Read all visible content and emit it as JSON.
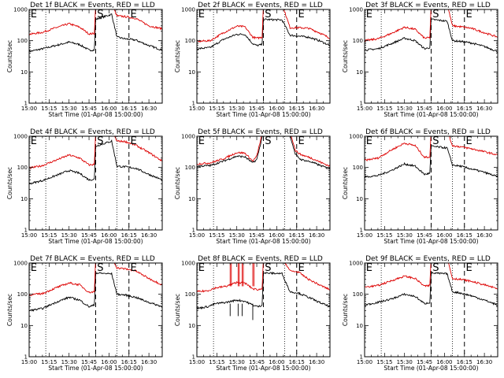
{
  "chart_data": {
    "type": "line",
    "layout": {
      "rows": 3,
      "cols": 3
    },
    "shared": {
      "xlabel": "Start Time (01-Apr-08 15:00:00)",
      "ylabel": "Counts/sec",
      "x_tick_labels": [
        "15:00",
        "15:15",
        "15:30",
        "15:45",
        "16:00",
        "16:15",
        "16:30"
      ],
      "x_tick_minutes": [
        0,
        15,
        30,
        45,
        60,
        75,
        90
      ],
      "xlim_minutes": [
        0,
        100
      ],
      "y_scale": "log",
      "ylim": [
        1,
        1000
      ],
      "y_tick_labels": [
        "1",
        "10",
        "100",
        "1000"
      ],
      "y_tick_values": [
        1,
        10,
        100,
        1000
      ],
      "series_colors": {
        "Events": "#000000",
        "LLD": "#dd0000"
      },
      "dotted_lines_minutes": [
        12.5,
        66
      ],
      "events_line_minutes": [
        50,
        75
      ],
      "event_markers": [
        {
          "text": "E",
          "minute": 1
        },
        {
          "text": "S",
          "minute": 51
        },
        {
          "text": "E",
          "minute": 76
        }
      ]
    },
    "panels": [
      {
        "title": "Det 1f BLACK = Events, RED = LLD",
        "events": [
          [
            0,
            45
          ],
          [
            10,
            55
          ],
          [
            20,
            70
          ],
          [
            30,
            90
          ],
          [
            38,
            75
          ],
          [
            45,
            50
          ],
          [
            49,
            50
          ],
          [
            50,
            480
          ],
          [
            62,
            700
          ],
          [
            66,
            130
          ],
          [
            72,
            115
          ],
          [
            80,
            105
          ],
          [
            90,
            70
          ],
          [
            100,
            50
          ]
        ],
        "lld": [
          [
            0,
            160
          ],
          [
            10,
            185
          ],
          [
            20,
            260
          ],
          [
            30,
            350
          ],
          [
            38,
            270
          ],
          [
            45,
            165
          ],
          [
            49,
            170
          ],
          [
            50,
            1500
          ],
          [
            62,
            1500
          ],
          [
            66,
            620
          ],
          [
            72,
            590
          ],
          [
            80,
            520
          ],
          [
            90,
            300
          ],
          [
            100,
            240
          ]
        ]
      },
      {
        "title": "Det 2f BLACK = Events, RED = LLD",
        "events": [
          [
            0,
            55
          ],
          [
            10,
            60
          ],
          [
            20,
            110
          ],
          [
            30,
            160
          ],
          [
            36,
            160
          ],
          [
            42,
            80
          ],
          [
            45,
            70
          ],
          [
            49,
            75
          ],
          [
            50,
            480
          ],
          [
            64,
            460
          ],
          [
            70,
            150
          ],
          [
            76,
            140
          ],
          [
            84,
            130
          ],
          [
            92,
            100
          ],
          [
            100,
            70
          ]
        ],
        "lld": [
          [
            0,
            95
          ],
          [
            10,
            100
          ],
          [
            20,
            180
          ],
          [
            30,
            290
          ],
          [
            36,
            280
          ],
          [
            42,
            130
          ],
          [
            45,
            120
          ],
          [
            49,
            130
          ],
          [
            50,
            1500
          ],
          [
            64,
            1500
          ],
          [
            70,
            260
          ],
          [
            76,
            260
          ],
          [
            84,
            250
          ],
          [
            92,
            180
          ],
          [
            100,
            120
          ]
        ]
      },
      {
        "title": "Det 3f BLACK = Events, RED = LLD",
        "events": [
          [
            0,
            50
          ],
          [
            10,
            55
          ],
          [
            20,
            80
          ],
          [
            30,
            120
          ],
          [
            38,
            100
          ],
          [
            45,
            55
          ],
          [
            49,
            60
          ],
          [
            50,
            480
          ],
          [
            62,
            420
          ],
          [
            66,
            100
          ],
          [
            72,
            95
          ],
          [
            80,
            85
          ],
          [
            90,
            65
          ],
          [
            100,
            45
          ]
        ],
        "lld": [
          [
            0,
            100
          ],
          [
            10,
            115
          ],
          [
            20,
            170
          ],
          [
            30,
            270
          ],
          [
            38,
            230
          ],
          [
            45,
            120
          ],
          [
            49,
            125
          ],
          [
            50,
            1500
          ],
          [
            62,
            1500
          ],
          [
            66,
            300
          ],
          [
            72,
            280
          ],
          [
            80,
            250
          ],
          [
            90,
            180
          ],
          [
            100,
            130
          ]
        ]
      },
      {
        "title": "Det 4f BLACK = Events, RED = LLD",
        "events": [
          [
            0,
            30
          ],
          [
            10,
            38
          ],
          [
            20,
            55
          ],
          [
            30,
            80
          ],
          [
            38,
            65
          ],
          [
            45,
            40
          ],
          [
            49,
            42
          ],
          [
            50,
            480
          ],
          [
            62,
            700
          ],
          [
            66,
            110
          ],
          [
            72,
            105
          ],
          [
            80,
            95
          ],
          [
            90,
            60
          ],
          [
            100,
            40
          ]
        ],
        "lld": [
          [
            0,
            95
          ],
          [
            10,
            115
          ],
          [
            20,
            170
          ],
          [
            30,
            250
          ],
          [
            38,
            200
          ],
          [
            45,
            120
          ],
          [
            49,
            125
          ],
          [
            50,
            1500
          ],
          [
            62,
            1500
          ],
          [
            66,
            700
          ],
          [
            72,
            680
          ],
          [
            80,
            520
          ],
          [
            90,
            300
          ],
          [
            100,
            160
          ]
        ]
      },
      {
        "title": "Det 5f BLACK = Events, RED = LLD",
        "events": [
          [
            0,
            110
          ],
          [
            10,
            115
          ],
          [
            20,
            160
          ],
          [
            30,
            230
          ],
          [
            36,
            220
          ],
          [
            42,
            140
          ],
          [
            45,
            180
          ],
          [
            49,
            900
          ],
          [
            52,
            3500
          ],
          [
            62,
            6000
          ],
          [
            68,
            2200
          ],
          [
            74,
            260
          ],
          [
            78,
            180
          ],
          [
            86,
            150
          ],
          [
            94,
            110
          ],
          [
            100,
            90
          ]
        ],
        "lld": [
          [
            0,
            130
          ],
          [
            10,
            140
          ],
          [
            20,
            190
          ],
          [
            30,
            300
          ],
          [
            36,
            290
          ],
          [
            42,
            160
          ],
          [
            45,
            230
          ],
          [
            49,
            1200
          ],
          [
            52,
            4500
          ],
          [
            62,
            8000
          ],
          [
            68,
            3000
          ],
          [
            74,
            350
          ],
          [
            78,
            260
          ],
          [
            86,
            200
          ],
          [
            94,
            140
          ],
          [
            100,
            110
          ]
        ]
      },
      {
        "title": "Det 6f BLACK = Events, RED = LLD",
        "events": [
          [
            0,
            50
          ],
          [
            10,
            55
          ],
          [
            20,
            80
          ],
          [
            30,
            130
          ],
          [
            38,
            110
          ],
          [
            45,
            60
          ],
          [
            49,
            65
          ],
          [
            50,
            480
          ],
          [
            62,
            420
          ],
          [
            66,
            120
          ],
          [
            72,
            110
          ],
          [
            80,
            90
          ],
          [
            90,
            70
          ],
          [
            100,
            50
          ]
        ],
        "lld": [
          [
            0,
            170
          ],
          [
            10,
            200
          ],
          [
            20,
            360
          ],
          [
            30,
            600
          ],
          [
            38,
            500
          ],
          [
            45,
            210
          ],
          [
            49,
            220
          ],
          [
            50,
            1500
          ],
          [
            62,
            1500
          ],
          [
            66,
            500
          ],
          [
            72,
            460
          ],
          [
            80,
            400
          ],
          [
            90,
            320
          ],
          [
            100,
            250
          ]
        ]
      },
      {
        "title": "Det 7f BLACK = Events, RED = LLD",
        "events": [
          [
            0,
            30
          ],
          [
            10,
            35
          ],
          [
            20,
            55
          ],
          [
            30,
            80
          ],
          [
            38,
            65
          ],
          [
            45,
            40
          ],
          [
            49,
            45
          ],
          [
            50,
            480
          ],
          [
            62,
            450
          ],
          [
            66,
            100
          ],
          [
            72,
            95
          ],
          [
            80,
            80
          ],
          [
            90,
            55
          ],
          [
            100,
            40
          ]
        ],
        "lld": [
          [
            0,
            95
          ],
          [
            10,
            105
          ],
          [
            20,
            160
          ],
          [
            30,
            230
          ],
          [
            38,
            200
          ],
          [
            45,
            115
          ],
          [
            49,
            120
          ],
          [
            50,
            1500
          ],
          [
            62,
            1500
          ],
          [
            66,
            700
          ],
          [
            72,
            650
          ],
          [
            80,
            560
          ],
          [
            90,
            320
          ],
          [
            100,
            200
          ]
        ]
      },
      {
        "title": "Det 8f BLACK = Events, RED = LLD",
        "events": [
          [
            0,
            35
          ],
          [
            8,
            40
          ],
          [
            14,
            50
          ],
          [
            22,
            55
          ],
          [
            30,
            65
          ],
          [
            36,
            60
          ],
          [
            42,
            45
          ],
          [
            46,
            40
          ],
          [
            49,
            45
          ],
          [
            50,
            480
          ],
          [
            64,
            460
          ],
          [
            70,
            120
          ],
          [
            76,
            110
          ],
          [
            84,
            80
          ],
          [
            92,
            55
          ],
          [
            100,
            40
          ]
        ],
        "lld": [
          [
            0,
            120
          ],
          [
            8,
            130
          ],
          [
            14,
            160
          ],
          [
            22,
            180
          ],
          [
            30,
            240
          ],
          [
            36,
            230
          ],
          [
            42,
            150
          ],
          [
            46,
            140
          ],
          [
            49,
            150
          ],
          [
            50,
            1500
          ],
          [
            64,
            1500
          ],
          [
            70,
            560
          ],
          [
            76,
            520
          ],
          [
            84,
            300
          ],
          [
            92,
            200
          ],
          [
            100,
            140
          ]
        ],
        "spikes_minutes": [
          25,
          31,
          34,
          42
        ]
      },
      {
        "title": "Det 9f BLACK = Events, RED = LLD",
        "events": [
          [
            0,
            45
          ],
          [
            10,
            55
          ],
          [
            20,
            70
          ],
          [
            30,
            100
          ],
          [
            38,
            85
          ],
          [
            45,
            50
          ],
          [
            49,
            55
          ],
          [
            50,
            480
          ],
          [
            62,
            450
          ],
          [
            66,
            120
          ],
          [
            72,
            110
          ],
          [
            80,
            90
          ],
          [
            90,
            65
          ],
          [
            100,
            45
          ]
        ],
        "lld": [
          [
            0,
            170
          ],
          [
            10,
            190
          ],
          [
            20,
            270
          ],
          [
            30,
            380
          ],
          [
            38,
            320
          ],
          [
            45,
            180
          ],
          [
            49,
            190
          ],
          [
            50,
            1500
          ],
          [
            62,
            1500
          ],
          [
            66,
            320
          ],
          [
            72,
            300
          ],
          [
            80,
            260
          ],
          [
            90,
            200
          ],
          [
            100,
            150
          ]
        ]
      }
    ]
  }
}
